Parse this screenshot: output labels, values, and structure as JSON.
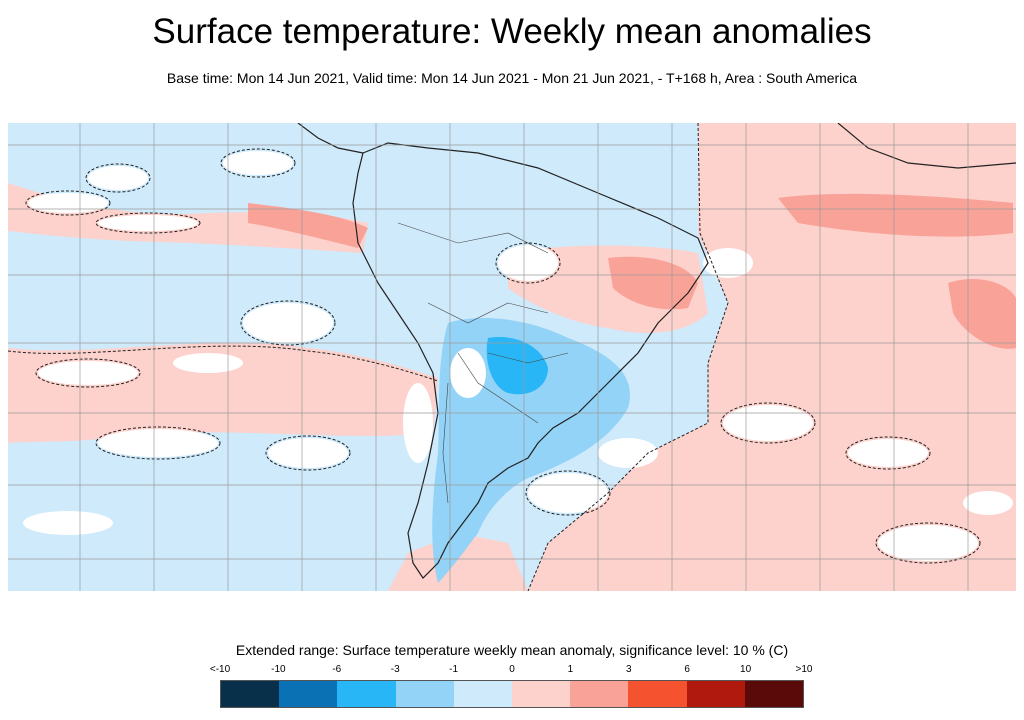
{
  "title": "Surface temperature: Weekly mean anomalies",
  "subtitle": "Base time: Mon 14 Jun 2021, Valid time: Mon 14 Jun 2021 - Mon 21 Jun 2021, - T+168 h, Area : South America",
  "legend": {
    "title": "Extended range: Surface temperature weekly mean anomaly, significance level: 10 % (C)",
    "labels": [
      "<-10",
      "-10",
      "-6",
      "-3",
      "-1",
      "0",
      "1",
      "3",
      "6",
      "10",
      ">10"
    ],
    "colors": [
      "#08304a",
      "#0a71b4",
      "#29b6f6",
      "#93d3f7",
      "#cfeafb",
      "#fdd1cc",
      "#f9a298",
      "#f55330",
      "#b0190d",
      "#5a0a08"
    ]
  },
  "map": {
    "area": "South America",
    "colors": {
      "ocean_cool": "#cfeafb",
      "ocean_warm": "#fdd1cc",
      "warm_strong": "#f9a298",
      "cool_strong": "#93d3f7",
      "cold_core": "#29b6f6",
      "neutral": "#ffffff",
      "coast": "#222222",
      "grid": "#9a9a9a"
    }
  }
}
